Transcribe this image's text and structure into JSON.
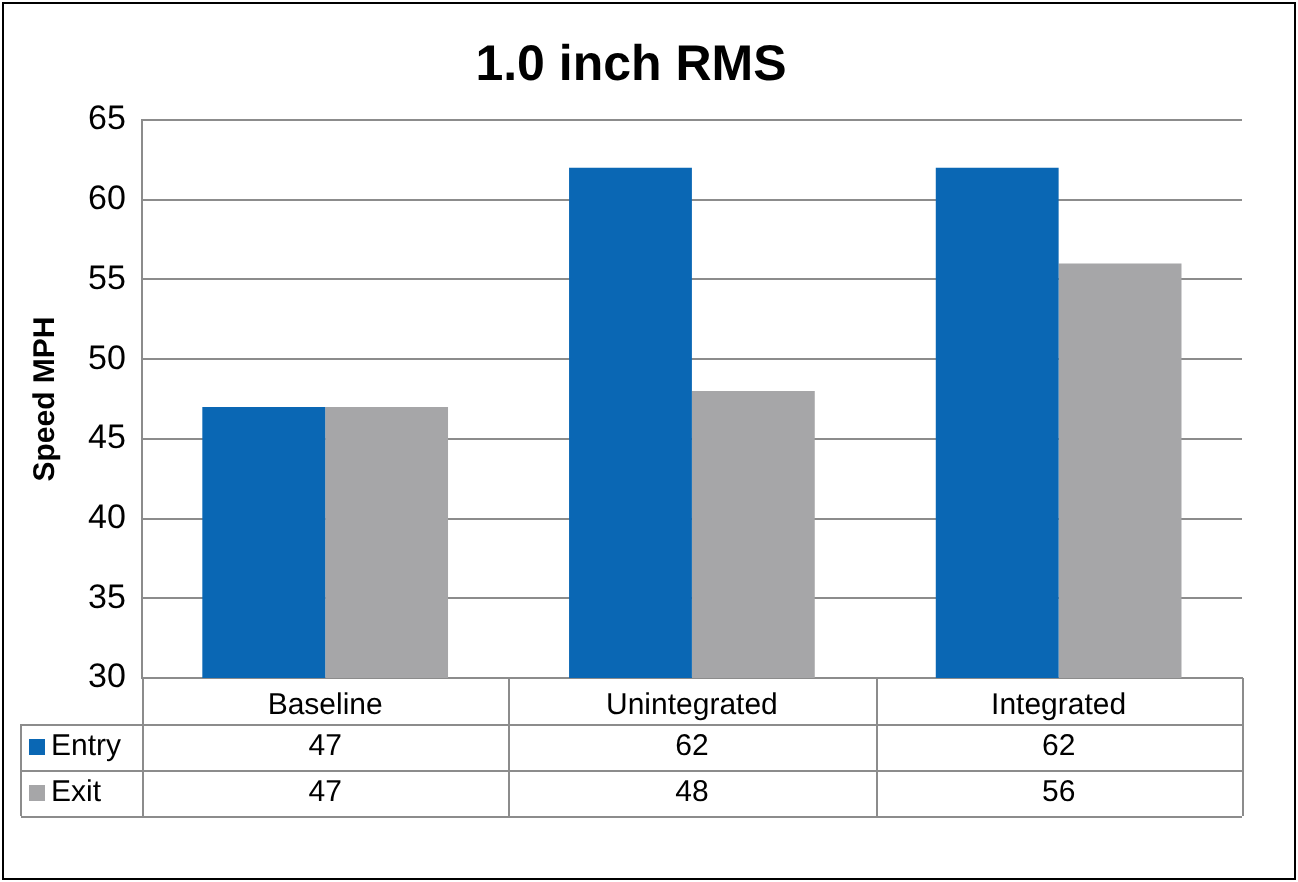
{
  "chart_data": {
    "type": "bar",
    "title": "1.0 inch RMS",
    "ylabel": "Speed MPH",
    "categories": [
      "Baseline",
      "Unintegrated",
      "Integrated"
    ],
    "series": [
      {
        "name": "Entry",
        "color": "#0a67b4",
        "values": [
          47,
          62,
          62
        ]
      },
      {
        "name": "Exit",
        "color": "#a6a6a8",
        "values": [
          47,
          48,
          56
        ]
      }
    ],
    "ylim": [
      30,
      65
    ],
    "yticks": [
      30,
      35,
      40,
      45,
      50,
      55,
      60,
      65
    ],
    "grid": "y",
    "legend": "bottom left",
    "data_labels": true
  }
}
